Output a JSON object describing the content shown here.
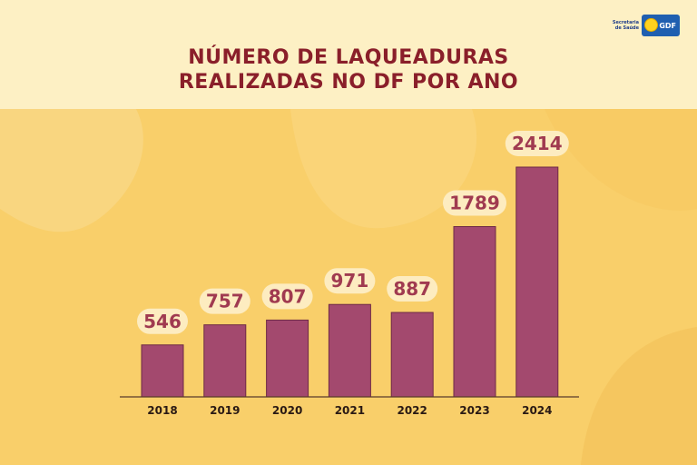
{
  "header": {
    "title_line1": "NÚMERO DE LAQUEADURAS",
    "title_line2": "REALIZADAS NO DF POR ANO"
  },
  "logo": {
    "text_line1": "Secretaria",
    "text_line2": "de Saúde",
    "brand": "GDF"
  },
  "colors": {
    "background": "#f9cf6a",
    "header_bg": "#fdf0c4",
    "title": "#8a1f2a",
    "bar": "#a3496e",
    "label_bg": "#fdecc0",
    "label_text": "#a03a50"
  },
  "chart_data": {
    "type": "bar",
    "title": "NÚMERO DE LAQUEADURAS REALIZADAS NO DF POR ANO",
    "categories": [
      "2018",
      "2019",
      "2020",
      "2021",
      "2022",
      "2023",
      "2024"
    ],
    "values": [
      546,
      757,
      807,
      971,
      887,
      1789,
      2414
    ],
    "ylim": [
      0,
      2414
    ],
    "grid": false,
    "legend": "none"
  }
}
